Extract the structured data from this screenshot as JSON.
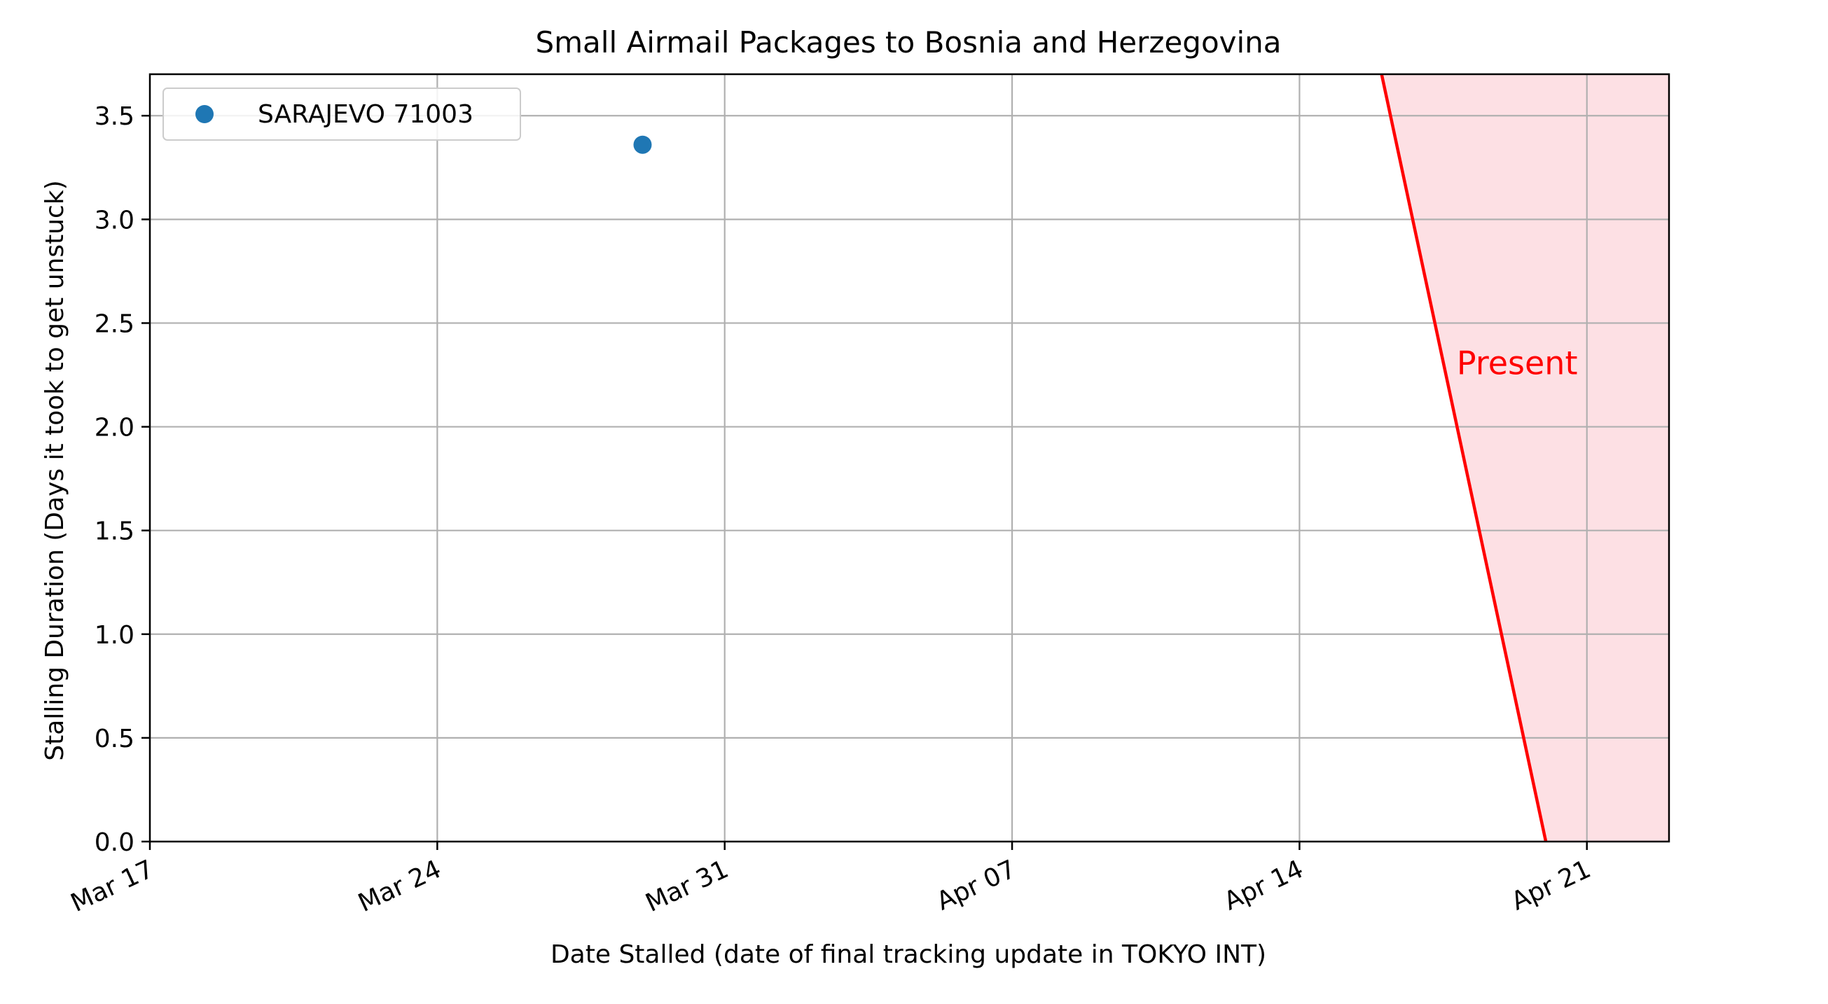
{
  "chart_data": {
    "type": "scatter",
    "title": "Small Airmail Packages to Bosnia and Herzegovina",
    "xlabel": "Date Stalled (date of final tracking update in TOKYO INT)",
    "ylabel": "Stalling Duration (Days it took to get unstuck)",
    "x_type": "date",
    "xlim": [
      "2024-03-17",
      "2024-04-23"
    ],
    "ylim": [
      0,
      3.7
    ],
    "x_ticks": [
      {
        "date": "2024-03-17",
        "label": "Mar 17"
      },
      {
        "date": "2024-03-24",
        "label": "Mar 24"
      },
      {
        "date": "2024-03-31",
        "label": "Mar 31"
      },
      {
        "date": "2024-04-07",
        "label": "Apr 07"
      },
      {
        "date": "2024-04-14",
        "label": "Apr 14"
      },
      {
        "date": "2024-04-21",
        "label": "Apr 21"
      }
    ],
    "y_ticks": [
      0.0,
      0.5,
      1.0,
      1.5,
      2.0,
      2.5,
      3.0,
      3.5
    ],
    "y_tick_labels": [
      "0.0",
      "0.5",
      "1.0",
      "1.5",
      "2.0",
      "2.5",
      "3.0",
      "3.5"
    ],
    "grid": true,
    "legend_position": "top-left",
    "series": [
      {
        "name": "SARAJEVO 71003",
        "color": "#1f77b4",
        "points": [
          {
            "x": "2024-03-29",
            "y": 3.36
          }
        ]
      }
    ],
    "present_region": {
      "label": "Present",
      "color": "#ff0000",
      "fill_color": "#fde0e4",
      "line_top": {
        "x": "2024-04-16",
        "y": 3.7
      },
      "line_bottom": {
        "x": "2024-04-20",
        "y": 0
      },
      "label_anchor": {
        "x": "2024-04-18",
        "y": 2.3
      }
    }
  }
}
